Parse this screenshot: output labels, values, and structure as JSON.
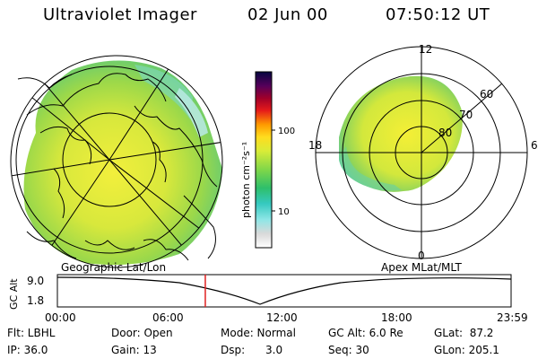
{
  "header": {
    "instrument": "Ultraviolet Imager",
    "date": "02 Jun 00",
    "time": "07:50:12 UT"
  },
  "colorbar": {
    "unit_label": "photon cm⁻²s⁻¹",
    "ticks": [
      "100",
      "10"
    ]
  },
  "panels": {
    "left_label": "Geographic Lat/Lon",
    "right_label": "Apex MLat/MLT"
  },
  "polar_plot": {
    "mlt_labels": [
      "12",
      "18",
      "6",
      "0"
    ],
    "lat_labels": [
      "60",
      "70",
      "80"
    ]
  },
  "timeline": {
    "ylabel": "GC Alt",
    "y_ticks": [
      "9.0",
      "1.8"
    ],
    "x_ticks": [
      "00:00",
      "06:00",
      "12:00",
      "18:00",
      "23:59"
    ],
    "current_time_fraction": 0.326
  },
  "status": {
    "flt": "Flt: LBHL",
    "ip": "IP: 36.0",
    "door": "Door: Open",
    "gain": "Gain: 13",
    "mode": "Mode: Normal",
    "dsp": "Dsp:      3.0",
    "gc_alt": "GC Alt: 6.0 Re",
    "seq": "Seq: 30",
    "glat": "GLat:  87.2",
    "glon": "GLon: 205.1"
  }
}
